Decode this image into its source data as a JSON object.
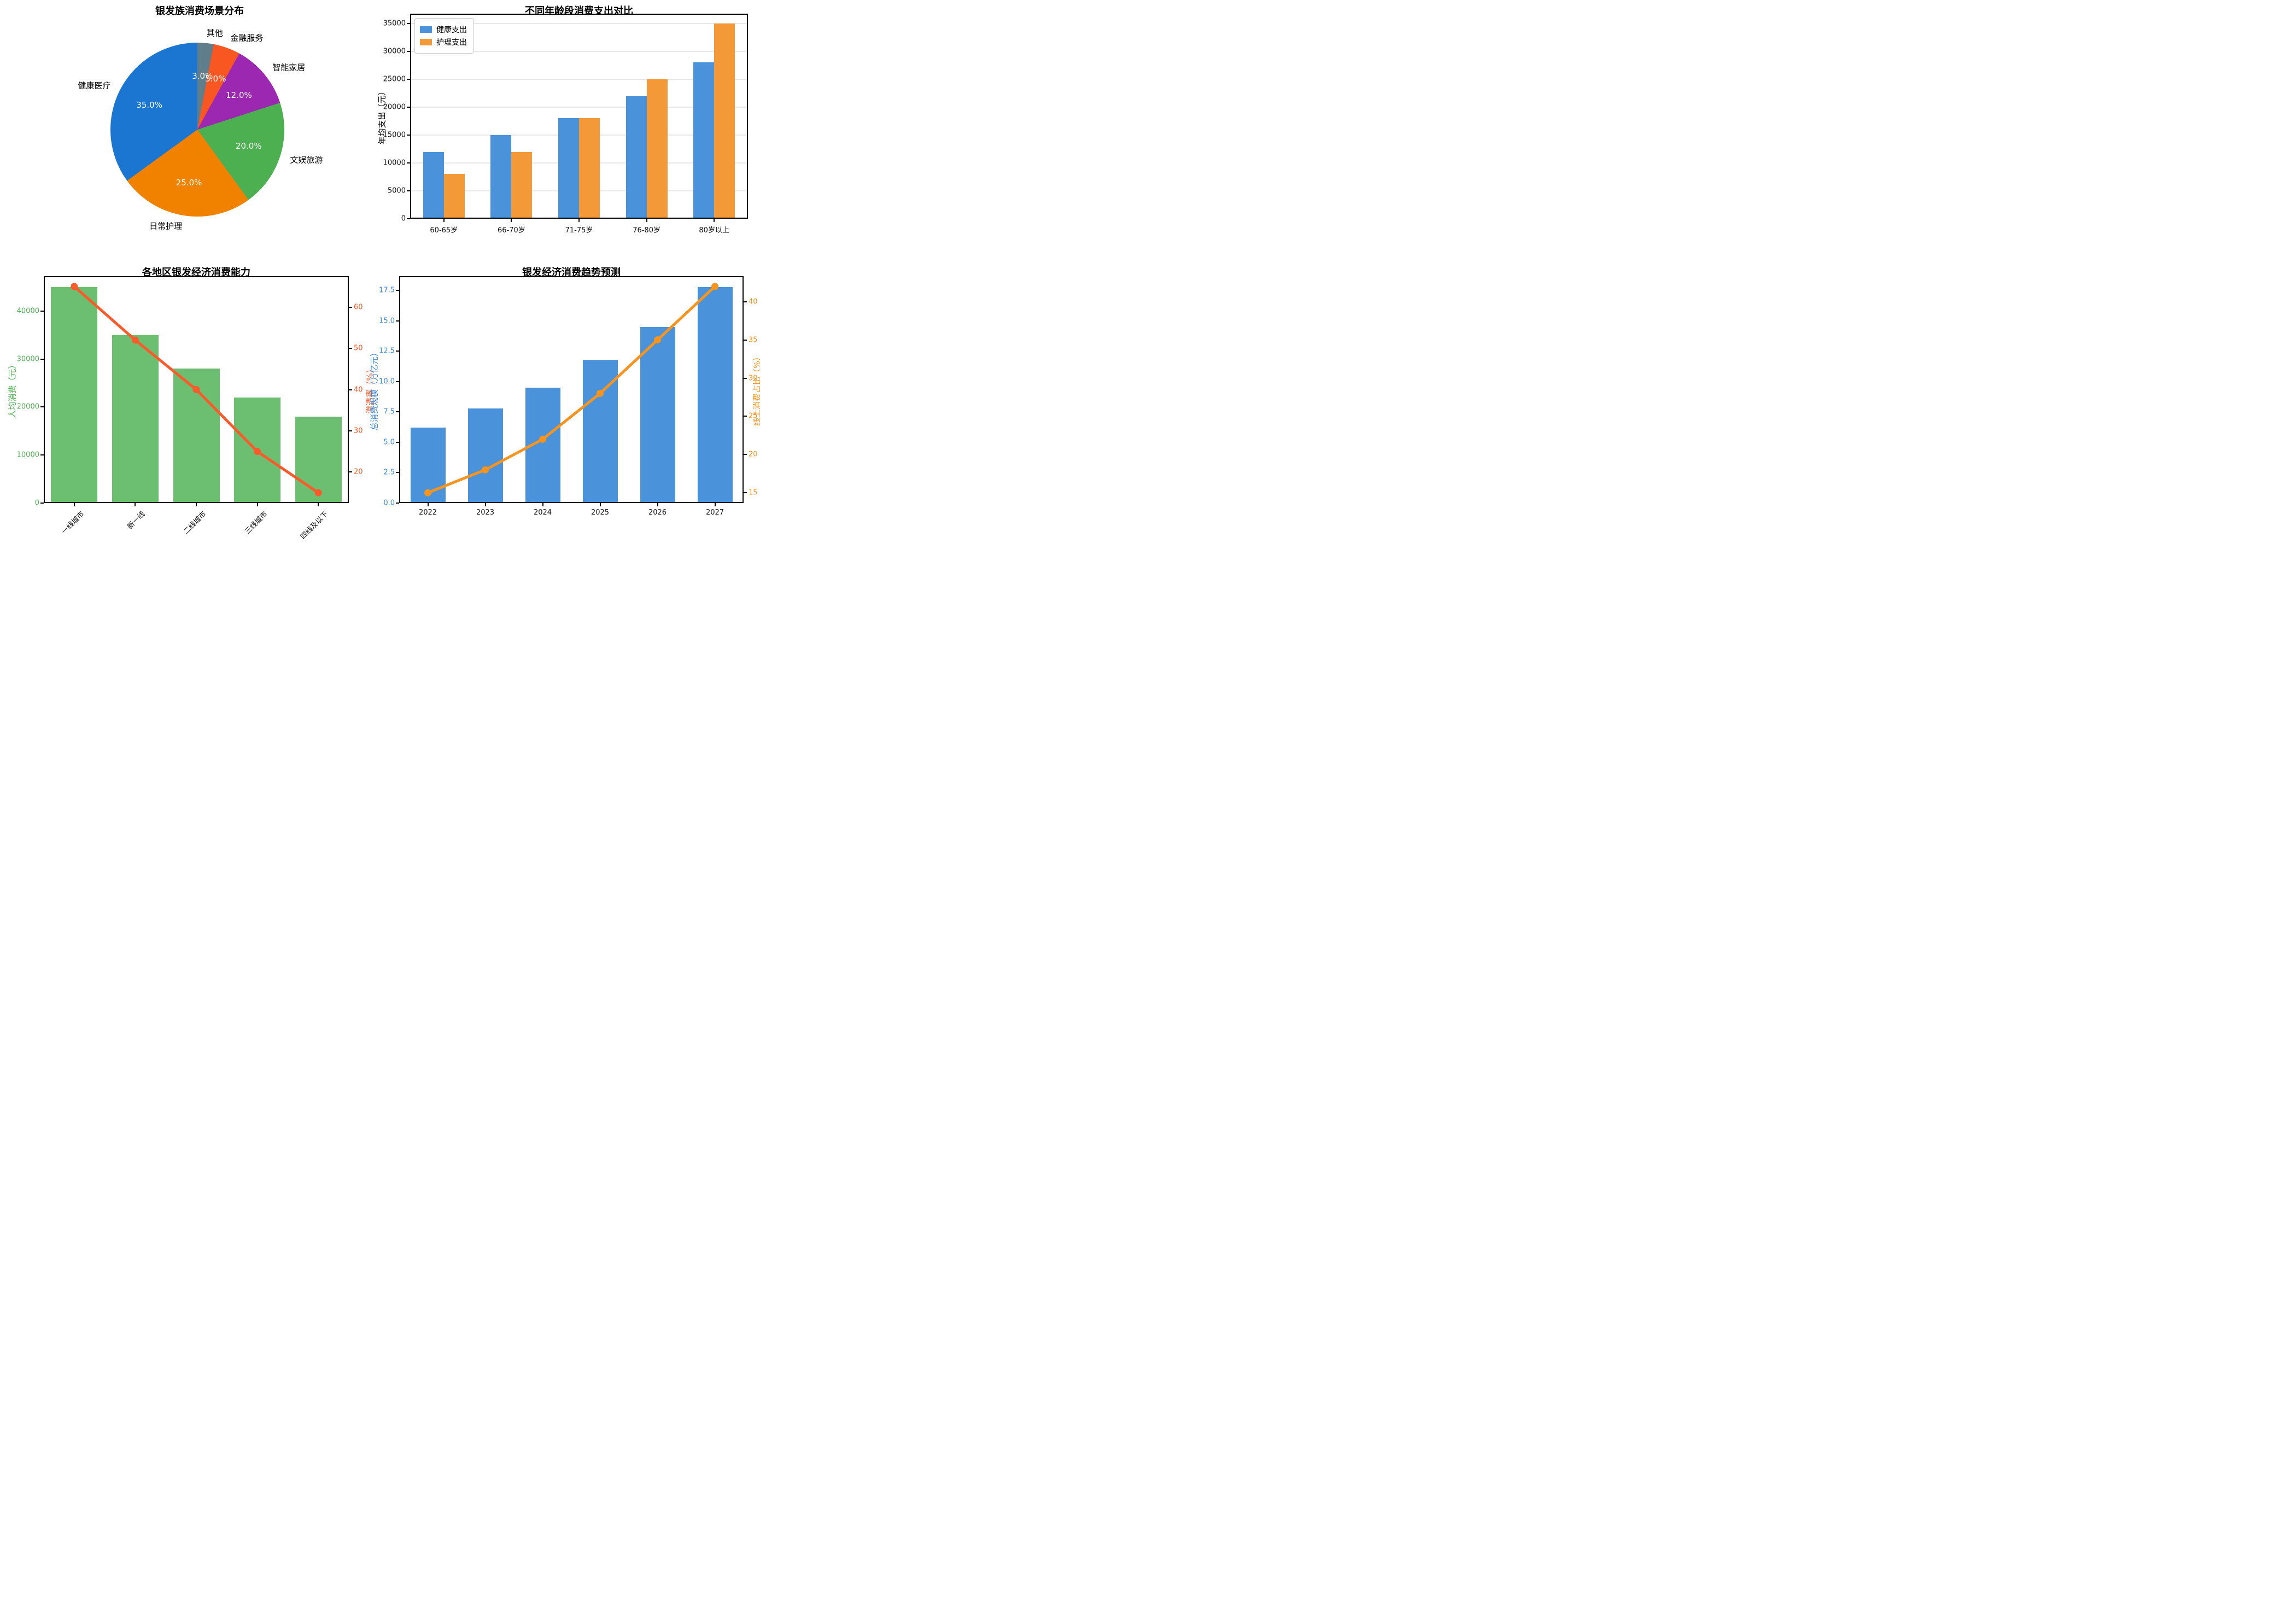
{
  "chart_data": [
    {
      "id": "pie",
      "type": "pie",
      "title": "银发族消费场景分布",
      "labels": [
        "健康医疗",
        "日常护理",
        "文娱旅游",
        "智能家居",
        "金融服务",
        "其他"
      ],
      "values": [
        35,
        25,
        20,
        12,
        5,
        3
      ],
      "pct_labels": [
        "35.0%",
        "25.0%",
        "20.0%",
        "12.0%",
        "5.0%",
        "3.0%"
      ],
      "colors": [
        "#1b76d2",
        "#f08200",
        "#4caf50",
        "#9c27b0",
        "#f95721",
        "#607d8b"
      ],
      "start_angle": 90,
      "counterclock": true
    },
    {
      "id": "age",
      "type": "bar",
      "title": "不同年龄段消费支出对比",
      "categories": [
        "60-65岁",
        "66-70岁",
        "71-75岁",
        "76-80岁",
        "80岁以上"
      ],
      "series": [
        {
          "name": "健康支出",
          "color": "#4a92d9",
          "values": [
            12000,
            15000,
            18000,
            22000,
            28000
          ]
        },
        {
          "name": "护理支出",
          "color": "#f49937",
          "values": [
            8000,
            12000,
            18000,
            25000,
            35000
          ]
        }
      ],
      "ylabel": "年均支出（元）",
      "yticks": [
        0,
        5000,
        10000,
        15000,
        20000,
        25000,
        30000,
        35000
      ],
      "ylim": [
        0,
        36750
      ],
      "grid": true,
      "legend_position": "upper left"
    },
    {
      "id": "region",
      "type": "bar+line",
      "title": "各地区银发经济消费能力",
      "categories": [
        "一线城市",
        "新一线",
        "二线城市",
        "三线城市",
        "四线及以下"
      ],
      "bar_series": {
        "name": "人均消费",
        "color": "#6cbe70",
        "values": [
          45000,
          35000,
          28000,
          22000,
          18000
        ]
      },
      "line_series": {
        "name": "渗透率",
        "color": "#fb5a2b",
        "values": [
          65,
          52,
          40,
          25,
          15
        ]
      },
      "left_ylabel": "人均消费（元）",
      "right_ylabel": "渗透率（%）",
      "left_yticks": [
        0,
        10000,
        20000,
        30000,
        40000
      ],
      "left_ylim": [
        0,
        47250
      ],
      "right_yticks": [
        20,
        30,
        40,
        50,
        60
      ],
      "right_ylim": [
        12.5,
        67.5
      ],
      "left_axis_color": "#4caf50",
      "right_axis_color": "#f95721",
      "x_rotation": 45
    },
    {
      "id": "trend",
      "type": "bar+line",
      "title": "银发经济消费趋势预测",
      "categories": [
        "2022",
        "2023",
        "2024",
        "2025",
        "2026",
        "2027"
      ],
      "bar_series": {
        "name": "总消费规模",
        "color": "#4a92d9",
        "values": [
          6.2,
          7.8,
          9.5,
          11.8,
          14.5,
          17.8
        ]
      },
      "line_series": {
        "name": "线上消费占比",
        "color": "#f7941e",
        "values": [
          15,
          18,
          22,
          28,
          35,
          42
        ]
      },
      "left_ylabel": "总消费规模（万亿元）",
      "right_ylabel": "线上消费占比（%）",
      "left_yticks": [
        0,
        2.5,
        5,
        7.5,
        10,
        12.5,
        15,
        17.5
      ],
      "left_ytick_labels": [
        "0.0",
        "2.5",
        "5.0",
        "7.5",
        "10.0",
        "12.5",
        "15.0",
        "17.5"
      ],
      "left_ylim": [
        0,
        18.69
      ],
      "right_yticks": [
        15,
        20,
        25,
        30,
        35,
        40
      ],
      "right_ylim": [
        13.65,
        43.35
      ],
      "left_axis_color": "#3a89d6",
      "right_axis_color": "#f7941e",
      "x_rotation": 0
    }
  ]
}
